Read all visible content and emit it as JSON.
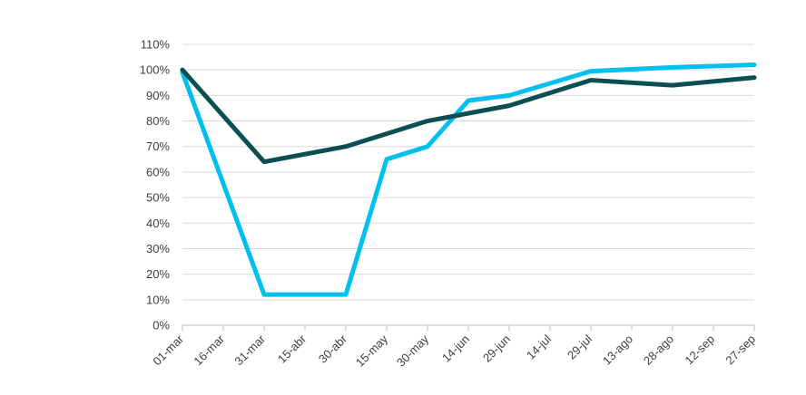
{
  "chart_data": {
    "type": "line",
    "title": "",
    "xlabel": "",
    "ylabel": "",
    "categories": [
      "01-mar",
      "16-mar",
      "31-mar",
      "15-abr",
      "30-abr",
      "15-may",
      "30-may",
      "14-jun",
      "29-jun",
      "14-jul",
      "29-jul",
      "13-ago",
      "28-ago",
      "12-sep",
      "27-sep"
    ],
    "y_ticks": [
      "0%",
      "10%",
      "20%",
      "30%",
      "40%",
      "50%",
      "60%",
      "70%",
      "80%",
      "90%",
      "100%",
      "110%"
    ],
    "ylim": [
      0,
      110
    ],
    "y_unit": "%",
    "grid": "horizontal",
    "legend": "none",
    "series": [
      {
        "color": "#00c0ef",
        "x": [
          "01-mar",
          "31-mar",
          "30-abr",
          "15-may",
          "30-may",
          "14-jun",
          "29-jun",
          "29-jul",
          "28-ago",
          "27-sep"
        ],
        "values": [
          99,
          12,
          12,
          65,
          70,
          88,
          90,
          99.5,
          101,
          102
        ]
      },
      {
        "color": "#0b4f52",
        "x": [
          "01-mar",
          "31-mar",
          "30-abr",
          "30-may",
          "29-jun",
          "29-jul",
          "28-ago",
          "27-sep"
        ],
        "values": [
          100,
          64,
          70,
          80,
          86,
          96,
          94,
          97
        ]
      }
    ]
  }
}
